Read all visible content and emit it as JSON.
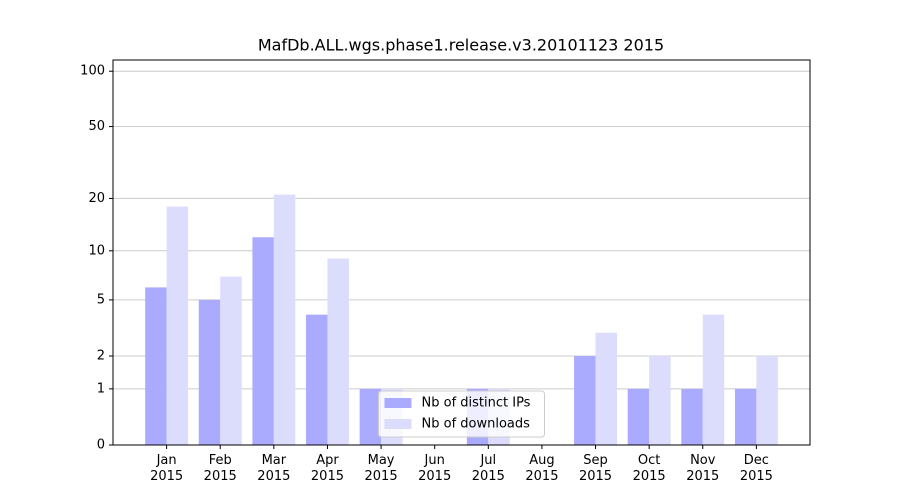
{
  "chart_data": {
    "type": "bar",
    "title": "MafDb.ALL.wgs.phase1.release.v3.20101123 2015",
    "categories": [
      "Jan\n2015",
      "Feb\n2015",
      "Mar\n2015",
      "Apr\n2015",
      "May\n2015",
      "Jun\n2015",
      "Jul\n2015",
      "Aug\n2015",
      "Sep\n2015",
      "Oct\n2015",
      "Nov\n2015",
      "Dec\n2015"
    ],
    "series": [
      {
        "name": "Nb of distinct IPs",
        "color": "#aaaaff",
        "values": [
          6,
          5,
          12,
          4,
          1,
          0,
          1,
          0,
          2,
          1,
          1,
          1
        ]
      },
      {
        "name": "Nb of downloads",
        "color": "#dcdcfc",
        "values": [
          18,
          7,
          21,
          9,
          1,
          0,
          1,
          0,
          3,
          2,
          4,
          2
        ]
      }
    ],
    "yscale": "log1p",
    "ylim": [
      0,
      115
    ],
    "yticks": [
      0,
      1,
      2,
      5,
      10,
      20,
      50,
      100
    ],
    "grid": true,
    "legend": "lower center"
  }
}
